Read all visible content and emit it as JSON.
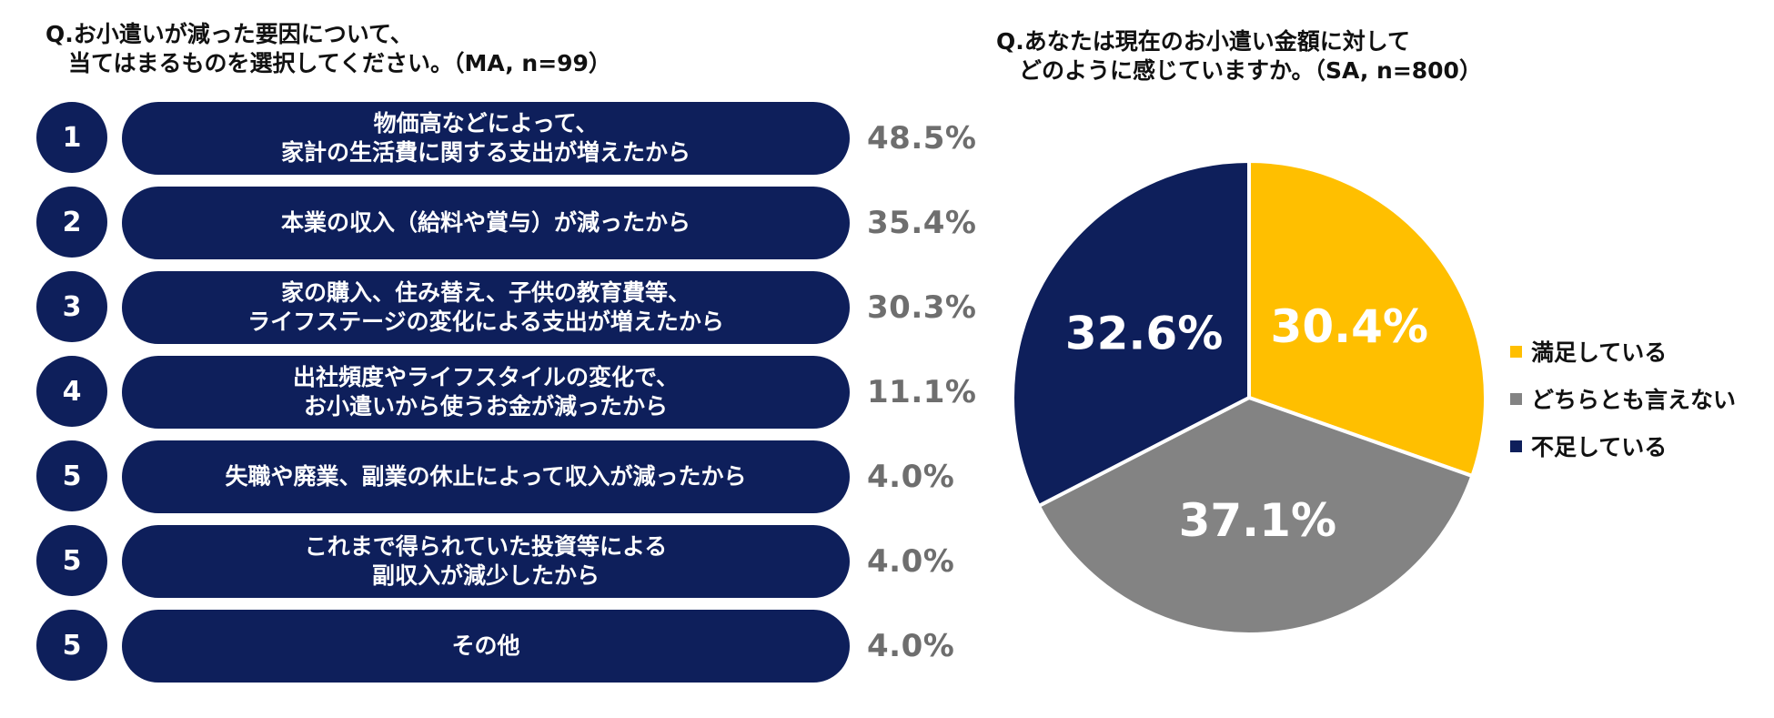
{
  "left_title": "Q.お小遣いが減った要因について、\n　当てはまるものを選択してください。（MA, n=99）",
  "right_title": "Q.あなたは現在のお小遣い金額に対して\n　どのように感じていますか。（SA, n=800）",
  "colors": {
    "navy": "#0e1f5b",
    "gold": "#ffbf00",
    "gray": "#838383",
    "value_text": "#6e6e6e"
  },
  "chart_data": [
    {
      "type": "bar",
      "title": "Q.お小遣いが減った要因について、当てはまるものを選択してください。（MA, n=99）",
      "ranks": [
        "1",
        "2",
        "3",
        "4",
        "5",
        "5",
        "5"
      ],
      "categories": [
        "物価高などによって、\n家計の生活費に関する支出が増えたから",
        "本業の収入（給料や賞与）が減ったから",
        "家の購入、住み替え、子供の教育費等、\nライフステージの変化による支出が増えたから",
        "出社頻度やライフスタイルの変化で、\nお小遣いから使うお金が減ったから",
        "失職や廃業、副業の休止によって収入が減ったから",
        "これまで得られていた投資等による\n副収入が減少したから",
        "その他"
      ],
      "values": [
        48.5,
        35.4,
        30.3,
        11.1,
        4.0,
        4.0,
        4.0
      ],
      "value_labels": [
        "48.5%",
        "35.4%",
        "30.3%",
        "11.1%",
        "4.0%",
        "4.0%",
        "4.0%"
      ]
    },
    {
      "type": "pie",
      "title": "Q.あなたは現在のお小遣い金額に対してどのように感じていますか。（SA, n=800）",
      "categories": [
        "満足している",
        "どちらとも言えない",
        "不足している"
      ],
      "values": [
        30.4,
        37.1,
        32.6
      ],
      "value_labels": [
        "30.4%",
        "37.1%",
        "32.6%"
      ],
      "colors": [
        "#ffbf00",
        "#838383",
        "#0e1f5b"
      ],
      "legend_position": "right"
    }
  ]
}
